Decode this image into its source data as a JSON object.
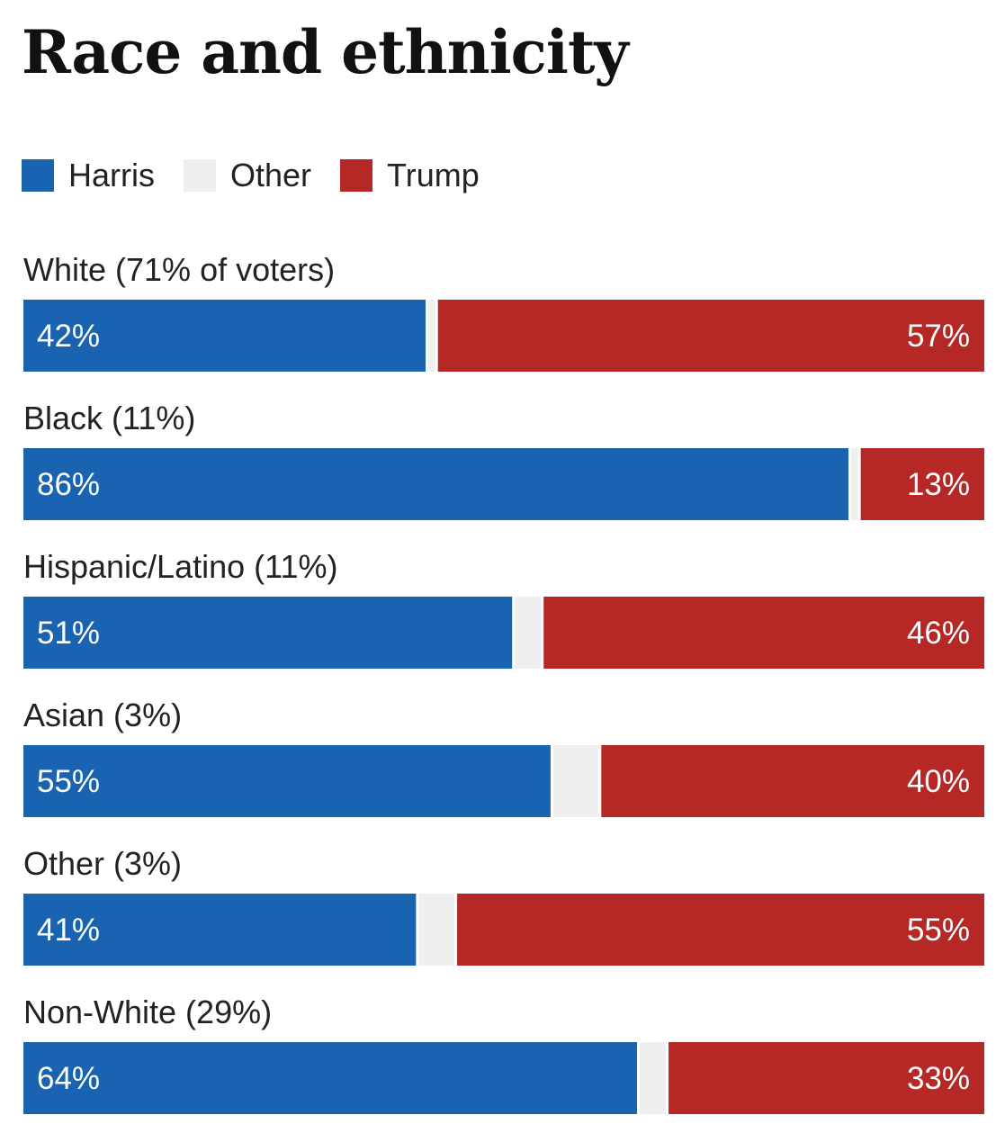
{
  "chart_data": {
    "type": "bar",
    "stacked": true,
    "orientation": "horizontal",
    "title": "Race and ethnicity",
    "legend": {
      "position": "top-left",
      "entries": [
        {
          "name": "Harris",
          "color": "#1a63b0"
        },
        {
          "name": "Other",
          "color": "#efefef"
        },
        {
          "name": "Trump",
          "color": "#b52825"
        }
      ]
    },
    "categories": [
      "White (71% of voters)",
      "Black (11%)",
      "Hispanic/Latino (11%)",
      "Asian (3%)",
      "Other (3%)",
      "Non-White (29%)"
    ],
    "series": [
      {
        "name": "Harris",
        "values": [
          42,
          86,
          51,
          55,
          41,
          64
        ],
        "labels": [
          "42%",
          "86%",
          "51%",
          "55%",
          "41%",
          "64%"
        ]
      },
      {
        "name": "Other",
        "values": [
          1,
          1,
          3,
          5,
          4,
          3
        ]
      },
      {
        "name": "Trump",
        "values": [
          57,
          13,
          46,
          40,
          55,
          33
        ],
        "labels": [
          "57%",
          "13%",
          "46%",
          "40%",
          "55%",
          "33%"
        ]
      }
    ],
    "xlim": [
      0,
      100
    ],
    "grid": false
  }
}
